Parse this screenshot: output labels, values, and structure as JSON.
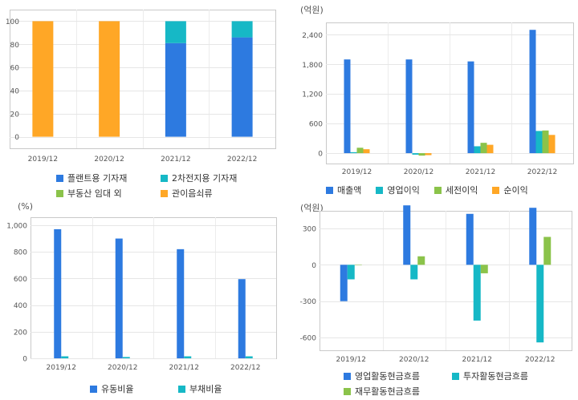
{
  "chart_data": [
    {
      "id": "composition",
      "type": "bar",
      "stacked": true,
      "unit_label": "",
      "categories": [
        "2019/12",
        "2020/12",
        "2021/12",
        "2022/12"
      ],
      "ylim": [
        -10,
        110
      ],
      "yticks": [
        0,
        20,
        40,
        60,
        80,
        100
      ],
      "grid": true,
      "legend_position": "bottom",
      "series": [
        {
          "name": "플랜트용 기자재",
          "color": "#2d7ae0",
          "values": [
            0,
            0,
            81,
            86
          ]
        },
        {
          "name": "2차전지용 기자재",
          "color": "#16b8c6",
          "values": [
            0,
            0,
            19,
            14
          ]
        },
        {
          "name": "부동산 임대 외",
          "color": "#8bc34a",
          "values": [
            0,
            0,
            0,
            0
          ]
        },
        {
          "name": "관이음쇠류",
          "color": "#ffa726",
          "values": [
            100,
            100,
            0,
            0
          ]
        }
      ]
    },
    {
      "id": "income",
      "type": "bar",
      "stacked": false,
      "unit_label": "(억원)",
      "categories": [
        "2019/12",
        "2020/12",
        "2021/12",
        "2022/12"
      ],
      "ylim": [
        -210,
        2650
      ],
      "yticks": [
        0,
        600,
        1200,
        1800,
        2400
      ],
      "grid": true,
      "legend_position": "bottom",
      "series": [
        {
          "name": "매출액",
          "color": "#2d7ae0",
          "values": [
            1900,
            1900,
            1860,
            2500
          ]
        },
        {
          "name": "영업이익",
          "color": "#16b8c6",
          "values": [
            20,
            -30,
            140,
            450
          ]
        },
        {
          "name": "세전이익",
          "color": "#8bc34a",
          "values": [
            110,
            -50,
            210,
            460
          ]
        },
        {
          "name": "순이익",
          "color": "#ffa726",
          "values": [
            80,
            -40,
            170,
            370
          ]
        }
      ]
    },
    {
      "id": "ratios",
      "type": "bar",
      "stacked": false,
      "unit_label": "(%)",
      "categories": [
        "2019/12",
        "2020/12",
        "2021/12",
        "2022/12"
      ],
      "ylim": [
        0,
        1060
      ],
      "yticks": [
        0,
        200,
        400,
        600,
        800,
        "1,000"
      ],
      "grid": true,
      "legend_position": "bottom",
      "series": [
        {
          "name": "유동비율",
          "color": "#2d7ae0",
          "values": [
            970,
            900,
            820,
            595
          ]
        },
        {
          "name": "부채비율",
          "color": "#16b8c6",
          "values": [
            15,
            10,
            15,
            15
          ]
        }
      ]
    },
    {
      "id": "cashflow",
      "type": "bar",
      "stacked": false,
      "unit_label": "(억원)",
      "categories": [
        "2019/12",
        "2020/12",
        "2021/12",
        "2022/12"
      ],
      "ylim": [
        -705,
        445
      ],
      "yticks": [
        -600,
        -300,
        0,
        300
      ],
      "grid": true,
      "legend_position": "bottom",
      "series": [
        {
          "name": "영업활동현금흐름",
          "color": "#2d7ae0",
          "values": [
            -300,
            490,
            420,
            470
          ]
        },
        {
          "name": "투자활동현금흐름",
          "color": "#16b8c6",
          "values": [
            -120,
            -120,
            -460,
            -640
          ]
        },
        {
          "name": "재무활동현금흐름",
          "color": "#8bc34a",
          "values": [
            0,
            70,
            -70,
            230
          ]
        }
      ]
    }
  ]
}
